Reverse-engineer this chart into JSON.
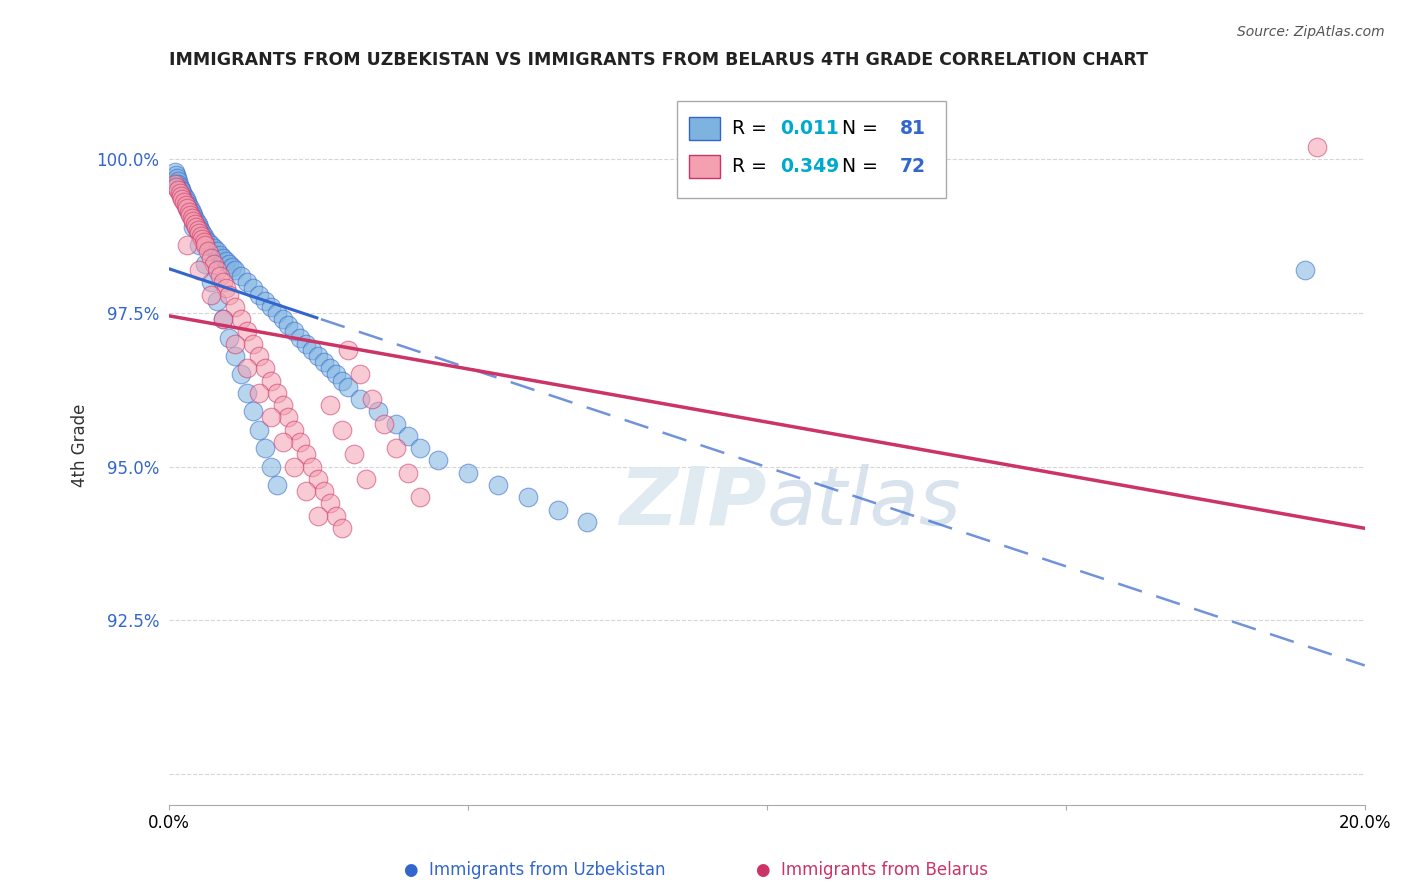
{
  "title": "IMMIGRANTS FROM UZBEKISTAN VS IMMIGRANTS FROM BELARUS 4TH GRADE CORRELATION CHART",
  "source": "Source: ZipAtlas.com",
  "ylabel": "4th Grade",
  "yticks": [
    90.0,
    92.5,
    95.0,
    97.5,
    100.0
  ],
  "ytick_labels": [
    "",
    "92.5%",
    "95.0%",
    "97.5%",
    "100.0%"
  ],
  "xlim": [
    0.0,
    20.0
  ],
  "ylim": [
    89.5,
    101.2
  ],
  "blue_color": "#7EB3E0",
  "pink_color": "#F4A0B0",
  "blue_line_color": "#3366CC",
  "pink_line_color": "#CC3366",
  "legend_R_blue": "0.011",
  "legend_N_blue": "81",
  "legend_R_pink": "0.349",
  "legend_N_pink": "72",
  "blue_x": [
    0.1,
    0.12,
    0.14,
    0.15,
    0.16,
    0.18,
    0.2,
    0.22,
    0.25,
    0.28,
    0.3,
    0.32,
    0.35,
    0.38,
    0.4,
    0.42,
    0.45,
    0.48,
    0.5,
    0.52,
    0.55,
    0.58,
    0.6,
    0.65,
    0.7,
    0.75,
    0.8,
    0.85,
    0.9,
    0.95,
    1.0,
    1.05,
    1.1,
    1.2,
    1.3,
    1.4,
    1.5,
    1.6,
    1.7,
    1.8,
    1.9,
    2.0,
    2.1,
    2.2,
    2.3,
    2.4,
    2.5,
    2.6,
    2.7,
    2.8,
    2.9,
    3.0,
    3.2,
    3.5,
    3.8,
    4.0,
    4.2,
    4.5,
    5.0,
    5.5,
    6.0,
    6.5,
    7.0,
    0.2,
    0.3,
    0.4,
    0.5,
    0.6,
    0.7,
    0.8,
    0.9,
    1.0,
    1.1,
    1.2,
    1.3,
    1.4,
    1.5,
    1.6,
    1.7,
    1.8,
    19.0
  ],
  "blue_y": [
    99.8,
    99.75,
    99.7,
    99.65,
    99.6,
    99.55,
    99.5,
    99.45,
    99.4,
    99.35,
    99.3,
    99.25,
    99.2,
    99.15,
    99.1,
    99.05,
    99.0,
    98.95,
    98.9,
    98.85,
    98.8,
    98.75,
    98.7,
    98.65,
    98.6,
    98.55,
    98.5,
    98.45,
    98.4,
    98.35,
    98.3,
    98.25,
    98.2,
    98.1,
    98.0,
    97.9,
    97.8,
    97.7,
    97.6,
    97.5,
    97.4,
    97.3,
    97.2,
    97.1,
    97.0,
    96.9,
    96.8,
    96.7,
    96.6,
    96.5,
    96.4,
    96.3,
    96.1,
    95.9,
    95.7,
    95.5,
    95.3,
    95.1,
    94.9,
    94.7,
    94.5,
    94.3,
    94.1,
    99.5,
    99.2,
    98.9,
    98.6,
    98.3,
    98.0,
    97.7,
    97.4,
    97.1,
    96.8,
    96.5,
    96.2,
    95.9,
    95.6,
    95.3,
    95.0,
    94.7,
    98.2
  ],
  "pink_x": [
    0.1,
    0.12,
    0.15,
    0.18,
    0.2,
    0.22,
    0.25,
    0.28,
    0.3,
    0.33,
    0.35,
    0.38,
    0.4,
    0.43,
    0.45,
    0.48,
    0.5,
    0.53,
    0.55,
    0.58,
    0.6,
    0.65,
    0.7,
    0.75,
    0.8,
    0.85,
    0.9,
    0.95,
    1.0,
    1.1,
    1.2,
    1.3,
    1.4,
    1.5,
    1.6,
    1.7,
    1.8,
    1.9,
    2.0,
    2.1,
    2.2,
    2.3,
    2.4,
    2.5,
    2.6,
    2.7,
    2.8,
    2.9,
    3.0,
    3.2,
    3.4,
    3.6,
    3.8,
    4.0,
    4.2,
    0.3,
    0.5,
    0.7,
    0.9,
    1.1,
    1.3,
    1.5,
    1.7,
    1.9,
    2.1,
    2.3,
    2.5,
    2.7,
    2.9,
    3.1,
    3.3,
    19.2
  ],
  "pink_y": [
    99.6,
    99.55,
    99.5,
    99.45,
    99.4,
    99.35,
    99.3,
    99.25,
    99.2,
    99.15,
    99.1,
    99.05,
    99.0,
    98.95,
    98.9,
    98.85,
    98.8,
    98.75,
    98.7,
    98.65,
    98.6,
    98.5,
    98.4,
    98.3,
    98.2,
    98.1,
    98.0,
    97.9,
    97.8,
    97.6,
    97.4,
    97.2,
    97.0,
    96.8,
    96.6,
    96.4,
    96.2,
    96.0,
    95.8,
    95.6,
    95.4,
    95.2,
    95.0,
    94.8,
    94.6,
    94.4,
    94.2,
    94.0,
    96.9,
    96.5,
    96.1,
    95.7,
    95.3,
    94.9,
    94.5,
    98.6,
    98.2,
    97.8,
    97.4,
    97.0,
    96.6,
    96.2,
    95.8,
    95.4,
    95.0,
    94.6,
    94.2,
    96.0,
    95.6,
    95.2,
    94.8,
    100.2
  ]
}
